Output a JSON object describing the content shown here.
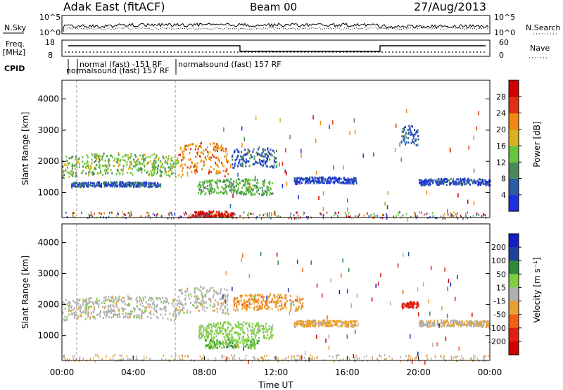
{
  "header": {
    "radar": "Adak East (fitACF)",
    "beam": "Beam 00",
    "date": "27/Aug/2013"
  },
  "strips": {
    "noise": {
      "left_label": "N.Sky",
      "right_label": "N.Search",
      "left_ticks": [
        "10^5",
        "10^0"
      ],
      "right_ticks": [
        "10^5",
        "10^0"
      ]
    },
    "freq": {
      "left_label": "Freq.",
      "left_unit": "[MHz]",
      "right_label": "Nave",
      "left_ticks": [
        "18",
        "8"
      ],
      "right_ticks": [
        "60",
        "0"
      ]
    },
    "cpid": {
      "label": "CPID",
      "entries": [
        "normal (fast) -151 RF",
        "normalsound (fast) 157 RF",
        "normalsound (fast) 157 RF"
      ]
    }
  },
  "chart_data": [
    {
      "type": "heatmap",
      "name": "power",
      "ylabel": "Slant Range [km]",
      "xlabel": "",
      "ylim": [
        200,
        4600
      ],
      "yticks": [
        1000,
        2000,
        3000,
        4000
      ],
      "xlim": [
        0,
        24
      ],
      "colorbar": {
        "label": "Power [dB]",
        "range": [
          0,
          32
        ],
        "ticks": [
          "4",
          "8",
          "12",
          "16",
          "20",
          "24",
          "28"
        ],
        "colors": [
          "#1e2fe0",
          "#2a5aa8",
          "#4a8a5a",
          "#66c53a",
          "#d8b020",
          "#f08a10",
          "#e03010",
          "#d00000"
        ]
      },
      "echo_regions": [
        {
          "t_start": 0.0,
          "t_end": 6.5,
          "range_start": 1500,
          "range_end": 2200,
          "level_db": 14
        },
        {
          "t_start": 0.5,
          "t_end": 5.5,
          "range_start": 1200,
          "range_end": 1350,
          "level_db": 6
        },
        {
          "t_start": 6.5,
          "t_end": 9.3,
          "range_start": 1500,
          "range_end": 2500,
          "level_db": 22
        },
        {
          "t_start": 7.6,
          "t_end": 11.8,
          "range_start": 900,
          "range_end": 1400,
          "level_db": 12
        },
        {
          "t_start": 7.2,
          "t_end": 9.6,
          "range_start": 200,
          "range_end": 400,
          "level_db": 30
        },
        {
          "t_start": 9.5,
          "t_end": 12.0,
          "range_start": 1800,
          "range_end": 2400,
          "level_db": 6
        },
        {
          "t_start": 13.0,
          "t_end": 16.5,
          "range_start": 1300,
          "range_end": 1500,
          "level_db": 4
        },
        {
          "t_start": 19.0,
          "t_end": 20.0,
          "range_start": 2500,
          "range_end": 3100,
          "level_db": 5
        },
        {
          "t_start": 20.0,
          "t_end": 24.0,
          "range_start": 1250,
          "range_end": 1450,
          "level_db": 5
        }
      ]
    },
    {
      "type": "heatmap",
      "name": "velocity",
      "ylabel": "Slant Range [km]",
      "xlabel": "Time UT",
      "ylim": [
        200,
        4600
      ],
      "yticks": [
        1000,
        2000,
        3000,
        4000
      ],
      "xlim": [
        0,
        24
      ],
      "xticks": [
        "00:00",
        "04:00",
        "08:00",
        "12:00",
        "16:00",
        "20:00",
        "00:00"
      ],
      "colorbar": {
        "label": "Velocity [m s⁻¹]",
        "range": [
          -250,
          250
        ],
        "ticks": [
          "200",
          "100",
          "50",
          "15",
          "-15",
          "-50",
          "-100",
          "-200"
        ],
        "colors": [
          "#1020c0",
          "#2040a0",
          "#2f8a3a",
          "#7ed040",
          "#b0b0b0",
          "#e8a030",
          "#f06010",
          "#e02010",
          "#d00000"
        ]
      },
      "echo_regions": [
        {
          "t_start": 0.0,
          "t_end": 6.5,
          "range_start": 1500,
          "range_end": 2200,
          "velocity": 0
        },
        {
          "t_start": 6.5,
          "t_end": 9.3,
          "range_start": 1700,
          "range_end": 2500,
          "velocity": 0
        },
        {
          "t_start": 7.6,
          "t_end": 11.8,
          "range_start": 900,
          "range_end": 1400,
          "velocity": 30
        },
        {
          "t_start": 8.0,
          "t_end": 11.0,
          "range_start": 600,
          "range_end": 900,
          "velocity": 40
        },
        {
          "t_start": 9.6,
          "t_end": 13.5,
          "range_start": 1800,
          "range_end": 2300,
          "velocity": -40
        },
        {
          "t_start": 13.0,
          "t_end": 16.5,
          "range_start": 1300,
          "range_end": 1500,
          "velocity": -30
        },
        {
          "t_start": 19.0,
          "t_end": 20.0,
          "range_start": 1900,
          "range_end": 2100,
          "velocity": -180
        },
        {
          "t_start": 20.0,
          "t_end": 24.0,
          "range_start": 1300,
          "range_end": 1500,
          "velocity": -10
        }
      ]
    }
  ]
}
